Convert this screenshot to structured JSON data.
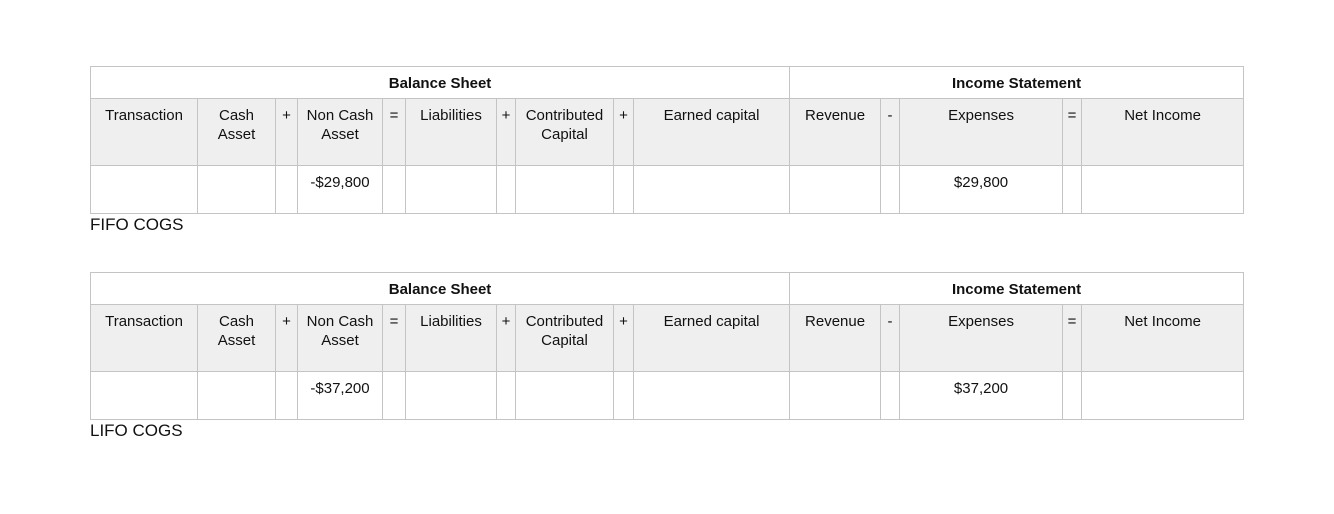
{
  "headers": {
    "balance_sheet": "Balance Sheet",
    "income_statement": "Income Statement"
  },
  "columns": [
    "Transaction",
    "Cash Asset",
    "+",
    "Non Cash Asset",
    "=",
    "Liabilities",
    "+",
    "Contributed Capital",
    "+",
    "Earned capital",
    "Revenue",
    "-",
    "Expenses",
    "=",
    "Net Income"
  ],
  "tables": [
    {
      "caption": "FIFO COGS",
      "non_cash_asset": "-$29,800",
      "expenses": "$29,800"
    },
    {
      "caption": "LIFO COGS",
      "non_cash_asset": "-$37,200",
      "expenses": "$37,200"
    }
  ]
}
